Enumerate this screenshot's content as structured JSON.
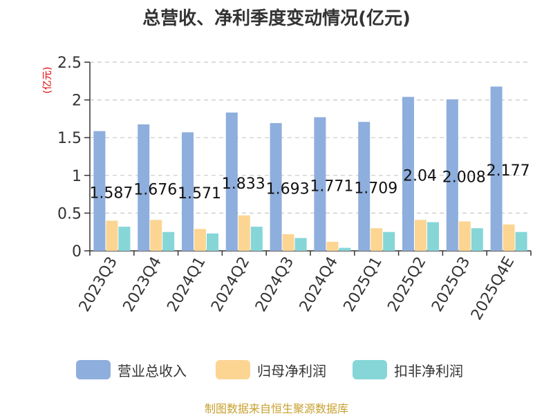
{
  "chart_data": {
    "type": "bar",
    "title": "总营收、净利季度变动情况(亿元)",
    "unit": "(亿元)",
    "categories": [
      "2023Q3",
      "2023Q4",
      "2024Q1",
      "2024Q2",
      "2024Q3",
      "2024Q4",
      "2025Q1",
      "2025Q2",
      "2025Q3",
      "2025Q4E"
    ],
    "y_ticks": [
      "0",
      "0.5",
      "1",
      "1.5",
      "2",
      "2.5"
    ],
    "ylim": [
      0,
      2.5
    ],
    "grid": true,
    "legend_position": "bottom",
    "series": [
      {
        "name": "营业总收入",
        "color": "#8eaedd",
        "values": [
          1.587,
          1.676,
          1.571,
          1.833,
          1.693,
          1.771,
          1.709,
          2.04,
          2.008,
          2.177
        ],
        "labels": [
          "1.587",
          "1.676",
          "1.571",
          "1.833",
          "1.693",
          "1.771",
          "1.709",
          "2.04",
          "2.008",
          "2.177"
        ]
      },
      {
        "name": "归母净利润",
        "color": "#fcd593",
        "values": [
          0.4,
          0.41,
          0.29,
          0.47,
          0.22,
          0.12,
          0.3,
          0.41,
          0.39,
          0.35
        ]
      },
      {
        "name": "扣非净利润",
        "color": "#86d6d8",
        "values": [
          0.32,
          0.25,
          0.23,
          0.32,
          0.17,
          0.04,
          0.25,
          0.38,
          0.3,
          0.25
        ]
      }
    ]
  },
  "source_text": "制图数据来自恒生聚源数据库"
}
